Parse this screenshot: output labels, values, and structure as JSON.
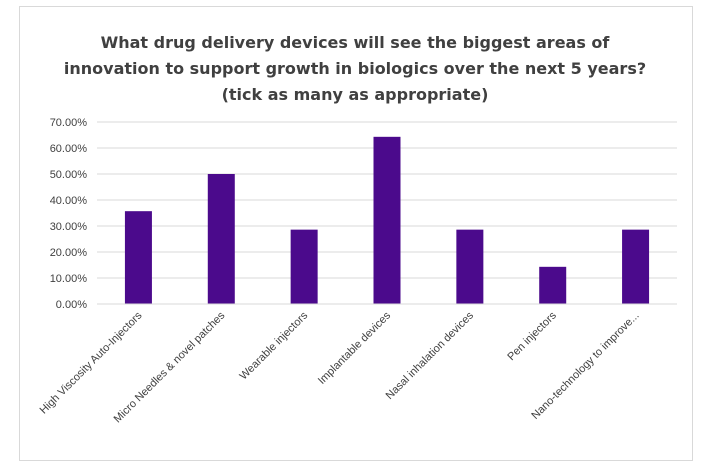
{
  "chart_data": {
    "type": "bar",
    "title": "What drug delivery devices will see the biggest areas of innovation to support growth in biologics over the next 5 years? (tick as many as appropriate)",
    "xlabel": "",
    "ylabel": "",
    "categories": [
      "High Viscosity Auto-Injectors",
      "Micro Needles & novel patches",
      "Wearable injectors",
      "Implantable devices",
      "Nasal inhalation devices",
      "Pen injectors",
      "Nano-technology to improve..."
    ],
    "values": [
      0.357,
      0.5,
      0.286,
      0.643,
      0.286,
      0.143,
      0.286
    ],
    "ylim": [
      0,
      0.7
    ],
    "yticks": [
      0,
      0.1,
      0.2,
      0.3,
      0.4,
      0.5,
      0.6,
      0.7
    ],
    "ytick_labels": [
      "0.00%",
      "10.00%",
      "20.00%",
      "30.00%",
      "40.00%",
      "50.00%",
      "60.00%",
      "70.00%"
    ],
    "grid": true,
    "legend": "none",
    "bar_color": "#4b0a8c",
    "grid_color": "#d9d9d9"
  }
}
